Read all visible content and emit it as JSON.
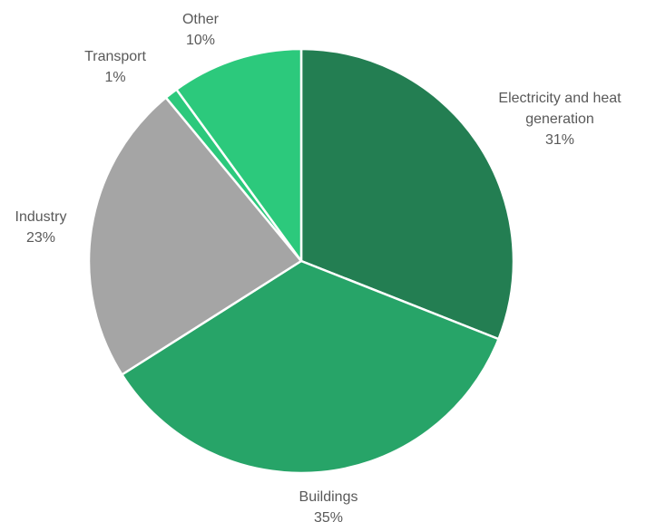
{
  "chart_data": {
    "type": "pie",
    "start_angle_deg": 0,
    "direction": "clockwise",
    "slices": [
      {
        "label": "Electricity and heat generation",
        "label_lines": [
          "Electricity and heat",
          "generation"
        ],
        "value": 31,
        "value_label": "31%",
        "color": "#237E52"
      },
      {
        "label": "Buildings",
        "label_lines": [
          "Buildings"
        ],
        "value": 35,
        "value_label": "35%",
        "color": "#27A468"
      },
      {
        "label": "Industry",
        "label_lines": [
          "Industry"
        ],
        "value": 23,
        "value_label": "23%",
        "color": "#A5A5A5"
      },
      {
        "label": "Transport",
        "label_lines": [
          "Transport"
        ],
        "value": 1,
        "value_label": "1%",
        "color": "#2CC97C"
      },
      {
        "label": "Other",
        "label_lines": [
          "Other"
        ],
        "value": 10,
        "value_label": "10%",
        "color": "#2CC97C"
      }
    ]
  }
}
